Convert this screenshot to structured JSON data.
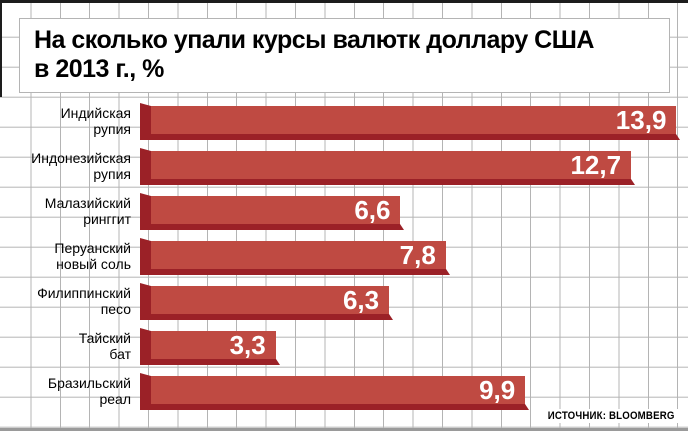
{
  "title": {
    "line1": "На сколько упали курсы валютк доллару США",
    "line2": "в 2013 г., %"
  },
  "source": "ИСТОЧНИК: BLOOMBERG",
  "colors": {
    "bar_face": "#bf4a42",
    "bar_shade": "#9b2127",
    "grid_line": "#b4b4b4"
  },
  "rows": [
    {
      "label_line1": "Индийская",
      "label_line2": "рупия",
      "value_display": "13,9"
    },
    {
      "label_line1": "Индонезийская",
      "label_line2": "рупия",
      "value_display": "12,7"
    },
    {
      "label_line1": "Малазийский",
      "label_line2": "ринггит",
      "value_display": "6,6"
    },
    {
      "label_line1": "Перуанский",
      "label_line2": "новый соль",
      "value_display": "7,8"
    },
    {
      "label_line1": "Филиппинский",
      "label_line2": "песо",
      "value_display": "6,3"
    },
    {
      "label_line1": "Тайский",
      "label_line2": "бат",
      "value_display": "3,3"
    },
    {
      "label_line1": "Бразильский",
      "label_line2": "реал",
      "value_display": "9,9"
    }
  ],
  "chart_data": {
    "type": "bar",
    "orientation": "horizontal",
    "title": "На сколько упали курсы валютк доллару США в 2013 г., %",
    "categories": [
      "Индийская рупия",
      "Индонезийская рупия",
      "Малазийский ринггит",
      "Перуанский новый соль",
      "Филиппинский песо",
      "Тайский бат",
      "Бразильский реал"
    ],
    "values": [
      13.9,
      12.7,
      6.6,
      7.8,
      6.3,
      3.3,
      9.9
    ],
    "value_labels": [
      "13,9",
      "12,7",
      "6,6",
      "7,8",
      "6,3",
      "3,3",
      "9,9"
    ],
    "unit": "%",
    "xlim": [
      0,
      14.5
    ],
    "grid": true,
    "legend": false,
    "source": "ИСТОЧНИК: BLOOMBERG"
  }
}
